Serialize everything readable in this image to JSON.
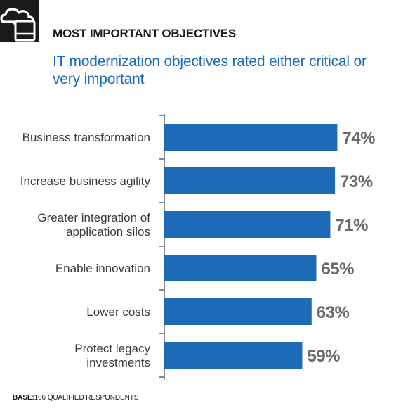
{
  "header": {
    "icon": "cloud-laptop-icon",
    "title": "MOST IMPORTANT OBJECTIVES",
    "subtitle": "IT modernization objectives rated either critical or very important"
  },
  "colors": {
    "bar": "#1d6ab7",
    "axis": "#555555",
    "value_label": "#6b6b6b",
    "category_label": "#3a3a3a",
    "subtitle": "#1d6ab7"
  },
  "chart_data": {
    "type": "bar",
    "orientation": "horizontal",
    "categories": [
      "Business transformation",
      "Increase business agility",
      "Greater integration of application silos",
      "Enable innovation",
      "Lower costs",
      "Protect legacy investments"
    ],
    "category_lines": [
      [
        "Business transformation"
      ],
      [
        "Increase business agility"
      ],
      [
        "Greater integration of",
        "application silos"
      ],
      [
        "Enable innovation"
      ],
      [
        "Lower costs"
      ],
      [
        "Protect legacy",
        "investments"
      ]
    ],
    "values": [
      74,
      73,
      71,
      65,
      63,
      59
    ],
    "value_labels": [
      "74%",
      "73%",
      "71%",
      "65%",
      "63%",
      "59%"
    ],
    "unit": "%",
    "xlim": [
      0,
      100
    ],
    "grid": false,
    "legend": "none"
  },
  "footer": {
    "base_label": "BASE:",
    "base_text": "106 QUALIFIED RESPONDENTS"
  }
}
